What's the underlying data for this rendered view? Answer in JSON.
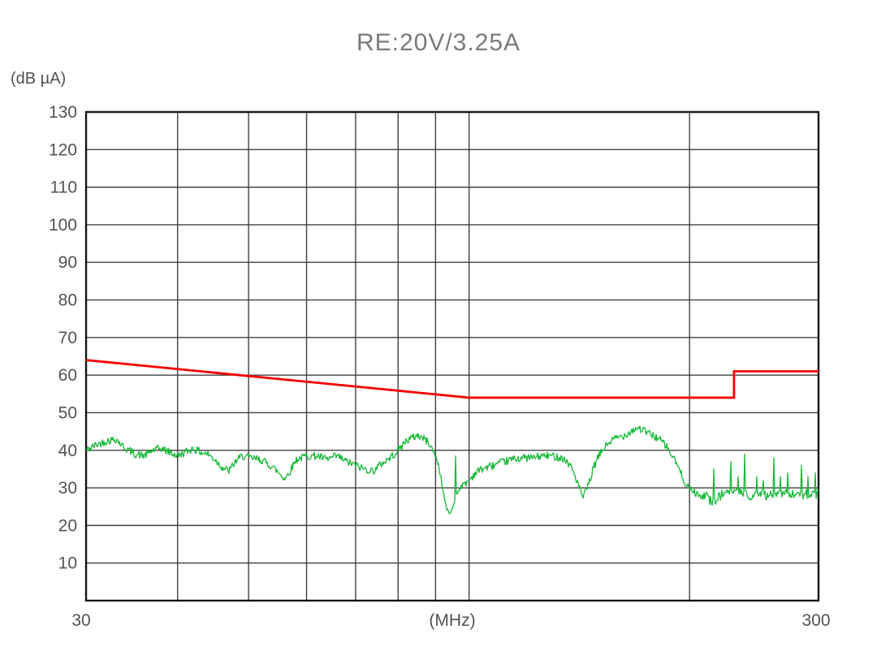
{
  "chart": {
    "title": "RE:20V/3.25A",
    "y_unit": "(dB µA)",
    "x_unit": "(MHz)",
    "x_min_label": "30",
    "x_max_label": "300"
  },
  "colors": {
    "limit_line": "#f40000",
    "trace_line": "#17b838",
    "grid_line": "#404040",
    "frame_line": "#141414",
    "title_text": "#7a7a7a",
    "axis_text": "#525252"
  },
  "chart_data": {
    "type": "line",
    "title": "RE:20V/3.25A",
    "xlabel": "(MHz)",
    "ylabel": "(dB µA)",
    "x_scale": "log",
    "xlim": [
      30,
      300
    ],
    "ylim": [
      0,
      130
    ],
    "y_ticks": [
      10,
      20,
      30,
      40,
      50,
      60,
      70,
      80,
      90,
      100,
      110,
      120,
      130
    ],
    "x_gridlines_mhz": [
      40,
      50,
      60,
      70,
      80,
      90,
      100,
      200
    ],
    "x_axis_labels": [
      "30",
      "300"
    ],
    "grid": true,
    "legend_position": "none",
    "series": [
      {
        "name": "limit-line",
        "color": "#f40000",
        "points": [
          [
            30,
            64
          ],
          [
            100,
            54
          ],
          [
            230,
            54
          ],
          [
            230,
            61
          ],
          [
            300,
            61
          ]
        ]
      },
      {
        "name": "measurement-trace",
        "color": "#17b838",
        "noise_db": 1.05,
        "floor_noise_db": 1.25,
        "anchors": [
          [
            30,
            40
          ],
          [
            31,
            41.5
          ],
          [
            32,
            42.5
          ],
          [
            33,
            43
          ],
          [
            33.5,
            41.5
          ],
          [
            34,
            40.5
          ],
          [
            35,
            39
          ],
          [
            36,
            38.5
          ],
          [
            37,
            40
          ],
          [
            38,
            40.5
          ],
          [
            39,
            39.5
          ],
          [
            40,
            38.5
          ],
          [
            41,
            39.5
          ],
          [
            42,
            40.5
          ],
          [
            43,
            39.5
          ],
          [
            44,
            39
          ],
          [
            45,
            37.5
          ],
          [
            46,
            35.5
          ],
          [
            47,
            34.5
          ],
          [
            48,
            37
          ],
          [
            49,
            38.5
          ],
          [
            50,
            38
          ],
          [
            52,
            37.5
          ],
          [
            53,
            36.5
          ],
          [
            54,
            35.5
          ],
          [
            55,
            34
          ],
          [
            56,
            32.5
          ],
          [
            57,
            34.5
          ],
          [
            58,
            37.5
          ],
          [
            60,
            38.5
          ],
          [
            62,
            38.5
          ],
          [
            64,
            37.5
          ],
          [
            66,
            38.5
          ],
          [
            68,
            37
          ],
          [
            70,
            36
          ],
          [
            72,
            35
          ],
          [
            74,
            34.5
          ],
          [
            76,
            36.5
          ],
          [
            78,
            38
          ],
          [
            80,
            40
          ],
          [
            82,
            42.5
          ],
          [
            84,
            43.5
          ],
          [
            85,
            44
          ],
          [
            86,
            43.5
          ],
          [
            87,
            43
          ],
          [
            88,
            42
          ],
          [
            89,
            40.5
          ],
          [
            90,
            38.5
          ],
          [
            91,
            35.5
          ],
          [
            92,
            30
          ],
          [
            92.8,
            26
          ],
          [
            93.5,
            23.5
          ],
          [
            94.5,
            23.5
          ],
          [
            95.2,
            25.5
          ],
          [
            96.5,
            29
          ],
          [
            97.5,
            30.5
          ],
          [
            98.5,
            31
          ],
          [
            100,
            32
          ],
          [
            102,
            34
          ],
          [
            104,
            35
          ],
          [
            106,
            35.5
          ],
          [
            108,
            36
          ],
          [
            110,
            36.5
          ],
          [
            114,
            37.5
          ],
          [
            118,
            38
          ],
          [
            122,
            38
          ],
          [
            126,
            38.5
          ],
          [
            130,
            38.5
          ],
          [
            134,
            38
          ],
          [
            136,
            37
          ],
          [
            138,
            35.5
          ],
          [
            140,
            32.5
          ],
          [
            142,
            29
          ],
          [
            143,
            27.5
          ],
          [
            144,
            28.5
          ],
          [
            146,
            31.5
          ],
          [
            148,
            35.5
          ],
          [
            150,
            38
          ],
          [
            152,
            40
          ],
          [
            155,
            42
          ],
          [
            158,
            43
          ],
          [
            160,
            43.5
          ],
          [
            163,
            44
          ],
          [
            166,
            45
          ],
          [
            168,
            45.5
          ],
          [
            170,
            46
          ],
          [
            172,
            45.5
          ],
          [
            174,
            45
          ],
          [
            176,
            44.5
          ],
          [
            178,
            44
          ],
          [
            180,
            43.5
          ],
          [
            183,
            42.5
          ],
          [
            186,
            41
          ],
          [
            188,
            39.5
          ],
          [
            190,
            38
          ],
          [
            192,
            36.5
          ],
          [
            194,
            34.5
          ],
          [
            196,
            32.5
          ],
          [
            198,
            31
          ],
          [
            200,
            30
          ],
          [
            203,
            29
          ],
          [
            206,
            28.5
          ],
          [
            210,
            28
          ],
          [
            214,
            26.5
          ],
          [
            218,
            27
          ],
          [
            222,
            28.5
          ],
          [
            226,
            28.5
          ],
          [
            230,
            29
          ],
          [
            235,
            28.5
          ],
          [
            240,
            28
          ],
          [
            245,
            28
          ],
          [
            250,
            28.5
          ],
          [
            255,
            28
          ],
          [
            260,
            28.5
          ],
          [
            265,
            28
          ],
          [
            270,
            28.5
          ],
          [
            275,
            28
          ],
          [
            280,
            28.5
          ],
          [
            285,
            28
          ],
          [
            290,
            28.5
          ],
          [
            295,
            28
          ],
          [
            300,
            28.5
          ]
        ],
        "spikes": [
          [
            95.8,
            38.5
          ],
          [
            216,
            35
          ],
          [
            228,
            37
          ],
          [
            233,
            33
          ],
          [
            238,
            39
          ],
          [
            247,
            33
          ],
          [
            252,
            32
          ],
          [
            261,
            38
          ],
          [
            266,
            33
          ],
          [
            272,
            34
          ],
          [
            284,
            36
          ],
          [
            290,
            33
          ],
          [
            297,
            34
          ]
        ]
      }
    ]
  }
}
